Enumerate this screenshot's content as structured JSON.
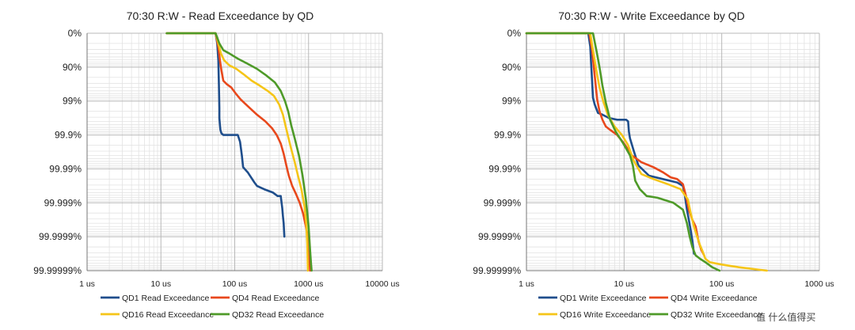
{
  "watermark": "值 什么值得买",
  "chart_data": [
    {
      "type": "line",
      "title": "70:30 R:W - Read Exceedance by QD",
      "x_scale": "log",
      "xlim": [
        1,
        10000
      ],
      "x_ticks": [
        1,
        10,
        100,
        1000,
        10000
      ],
      "x_tick_labels": [
        "1 us",
        "10 us",
        "100 us",
        "1000 us",
        "10000 us"
      ],
      "y_tick_labels": [
        "0%",
        "90%",
        "99%",
        "99.9%",
        "99.99%",
        "99.999%",
        "99.9999%",
        "99.99999%"
      ],
      "legend_position": "bottom",
      "grid": true,
      "series": [
        {
          "name": "QD1 Read Exceedance",
          "color": "#1f4e8c",
          "x": [
            12,
            55,
            58,
            60,
            61,
            62,
            62,
            63,
            64,
            66,
            70,
            80,
            95,
            110,
            118,
            125,
            130,
            150,
            185,
            200,
            250,
            330,
            380,
            420,
            440,
            450,
            460,
            470
          ],
          "y": [
            0,
            0,
            0.3,
            0.8,
            1.5,
            2.2,
            2.5,
            2.7,
            2.85,
            2.95,
            3.0,
            3.0,
            3.0,
            3.0,
            3.2,
            3.6,
            3.95,
            4.1,
            4.4,
            4.5,
            4.6,
            4.7,
            4.8,
            4.8,
            5.15,
            5.4,
            5.6,
            6.0
          ]
        },
        {
          "name": "QD4 Read Exceedance",
          "color": "#e8481c",
          "x": [
            12,
            55,
            60,
            63,
            66,
            70,
            78,
            90,
            105,
            120,
            150,
            200,
            260,
            320,
            370,
            420,
            460,
            500,
            540,
            600,
            680,
            760,
            840,
            900,
            960,
            1000,
            1050
          ],
          "y": [
            0,
            0,
            0.4,
            0.8,
            1.1,
            1.4,
            1.5,
            1.6,
            1.8,
            1.95,
            2.15,
            2.4,
            2.6,
            2.8,
            3.0,
            3.25,
            3.55,
            3.9,
            4.2,
            4.5,
            4.75,
            5.0,
            5.3,
            5.6,
            5.9,
            6.3,
            7.0
          ]
        },
        {
          "name": "QD16 Read Exceedance",
          "color": "#f5c518",
          "x": [
            12,
            55,
            60,
            65,
            72,
            85,
            105,
            130,
            170,
            220,
            280,
            340,
            400,
            450,
            490,
            530,
            580,
            650,
            720,
            800,
            880,
            930,
            960,
            980
          ],
          "y": [
            0,
            0,
            0.3,
            0.6,
            0.8,
            0.95,
            1.05,
            1.2,
            1.4,
            1.55,
            1.7,
            1.85,
            2.1,
            2.4,
            2.75,
            3.05,
            3.4,
            3.8,
            4.2,
            4.6,
            5.1,
            5.6,
            6.2,
            7.0
          ]
        },
        {
          "name": "QD32 Read Exceedance",
          "color": "#4e9a28",
          "x": [
            12,
            55,
            62,
            70,
            85,
            110,
            150,
            200,
            270,
            350,
            420,
            480,
            530,
            580,
            650,
            740,
            830,
            920,
            1000,
            1050,
            1080,
            1100
          ],
          "y": [
            0,
            0,
            0.3,
            0.5,
            0.6,
            0.75,
            0.9,
            1.05,
            1.25,
            1.45,
            1.7,
            2.0,
            2.3,
            2.7,
            3.1,
            3.6,
            4.2,
            4.9,
            5.7,
            6.4,
            6.8,
            7.0
          ]
        }
      ]
    },
    {
      "type": "line",
      "title": "70:30 R:W - Write Exceedance by QD",
      "x_scale": "log",
      "xlim": [
        1,
        1000
      ],
      "x_ticks": [
        1,
        10,
        100,
        1000
      ],
      "x_tick_labels": [
        "1 us",
        "10 us",
        "100 us",
        "1000 us"
      ],
      "y_tick_labels": [
        "0%",
        "90%",
        "99%",
        "99.9%",
        "99.99%",
        "99.999%",
        "99.9999%",
        "99.99999%"
      ],
      "legend_position": "bottom",
      "grid": true,
      "series": [
        {
          "name": "QD1 Write Exceedance",
          "color": "#1f4e8c",
          "x": [
            1,
            4.3,
            4.5,
            4.6,
            4.7,
            4.8,
            5.0,
            5.4,
            6,
            7,
            8.5,
            10.5,
            11,
            11.2,
            11.5,
            12.5,
            14,
            18,
            25,
            35,
            40,
            42,
            44,
            46,
            48,
            50,
            52
          ],
          "y": [
            0,
            0,
            0.4,
            0.9,
            1.4,
            1.9,
            2.1,
            2.35,
            2.4,
            2.5,
            2.55,
            2.55,
            2.6,
            2.9,
            3.1,
            3.45,
            3.9,
            4.2,
            4.3,
            4.4,
            4.5,
            4.8,
            5.2,
            5.5,
            5.8,
            6.1,
            6.5
          ]
        },
        {
          "name": "QD4 Write Exceedance",
          "color": "#e8481c",
          "x": [
            1,
            4.4,
            4.7,
            4.9,
            5.1,
            5.3,
            5.6,
            6,
            6.5,
            7.2,
            8.5,
            10,
            12,
            15,
            20,
            25,
            30,
            35,
            40,
            43,
            46,
            50,
            54,
            58,
            62,
            66
          ],
          "y": [
            0,
            0,
            0.5,
            1.0,
            1.5,
            1.95,
            2.3,
            2.55,
            2.75,
            2.85,
            3.0,
            3.25,
            3.6,
            3.8,
            3.95,
            4.1,
            4.25,
            4.3,
            4.45,
            4.8,
            5.2,
            5.5,
            5.7,
            6.15,
            6.4,
            6.55
          ]
        },
        {
          "name": "QD16 Write Exceedance",
          "color": "#f5c518",
          "x": [
            1,
            4.5,
            4.8,
            5.2,
            5.6,
            6.1,
            6.8,
            8,
            9.5,
            11,
            12.5,
            15,
            20,
            28,
            38,
            45,
            48,
            52,
            56,
            60,
            64,
            68,
            75,
            100,
            150,
            290
          ],
          "y": [
            0,
            0,
            0.5,
            1.1,
            1.6,
            2.0,
            2.4,
            2.75,
            3.0,
            3.3,
            3.75,
            4.15,
            4.3,
            4.45,
            4.6,
            4.9,
            5.3,
            5.7,
            6.0,
            6.25,
            6.45,
            6.65,
            6.75,
            6.82,
            6.9,
            7.0
          ]
        },
        {
          "name": "QD32 Write Exceedance",
          "color": "#4e9a28",
          "x": [
            1,
            4.8,
            5.2,
            5.6,
            6.0,
            6.5,
            7.2,
            8.2,
            9.8,
            11.5,
            12.3,
            13,
            14.5,
            17,
            22,
            32,
            40,
            44,
            47,
            50,
            54,
            60,
            68,
            80,
            95
          ],
          "y": [
            0,
            0,
            0.5,
            1.0,
            1.55,
            2.05,
            2.55,
            2.9,
            3.25,
            3.6,
            3.9,
            4.35,
            4.6,
            4.8,
            4.85,
            5.0,
            5.2,
            5.6,
            6.0,
            6.3,
            6.55,
            6.65,
            6.75,
            6.9,
            7.0
          ]
        }
      ]
    }
  ]
}
